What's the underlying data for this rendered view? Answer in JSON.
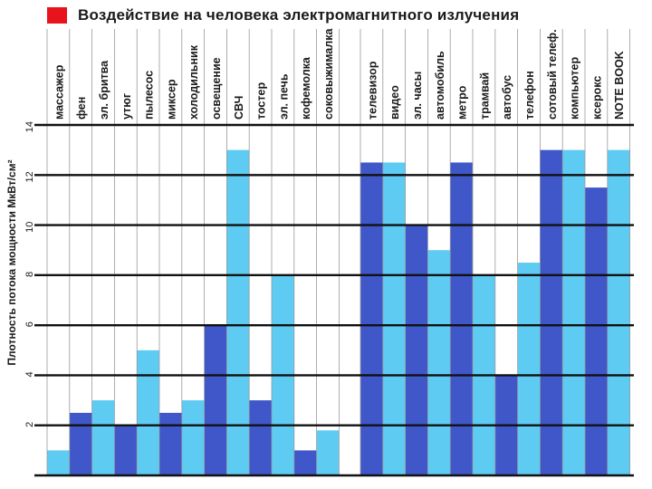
{
  "legend": {
    "label": "Воздействие на человека электромагнитного излучения"
  },
  "colors": {
    "legend_swatch": "#e8141c",
    "bar_dark": "#3f57c8",
    "bar_light": "#5ecbf2",
    "grid": "#111111",
    "column_border": "#9a9a9a",
    "text": "#1a1a1a"
  },
  "chart_data": {
    "type": "bar",
    "ylabel": "Плотность потока мощности МкВт/см²",
    "ylim": [
      0,
      14
    ],
    "yticks": [
      2,
      4,
      6,
      8,
      10,
      12,
      14
    ],
    "grid": true,
    "groups": [
      {
        "categories": [
          "массажер",
          "фен",
          "эл. бритва",
          "утюг",
          "пылесос",
          "миксер",
          "холодильник",
          "освещение",
          "СВЧ",
          "тостер",
          "эл. печь",
          "кофемолка",
          "соковыжималка"
        ],
        "values": [
          1,
          2.5,
          3,
          2,
          5,
          2.5,
          3,
          6,
          13,
          3,
          8,
          1,
          1.8
        ],
        "shade": [
          "light",
          "dark",
          "light",
          "dark",
          "light",
          "dark",
          "light",
          "dark",
          "light",
          "dark",
          "light",
          "dark",
          "light"
        ]
      },
      {
        "categories": [
          "телевизор",
          "видео",
          "эл. часы",
          "автомобиль",
          "метро",
          "трамвай",
          "автобус",
          "телефон",
          "сотовый телеф.",
          "компьютер",
          "ксерокс",
          "NOTE BOOK"
        ],
        "values": [
          12.5,
          12.5,
          10,
          9,
          12.5,
          8,
          4,
          8.5,
          13,
          13,
          11.5,
          13
        ],
        "shade": [
          "dark",
          "light",
          "dark",
          "light",
          "dark",
          "light",
          "dark",
          "light",
          "dark",
          "light",
          "dark",
          "light"
        ]
      }
    ]
  }
}
